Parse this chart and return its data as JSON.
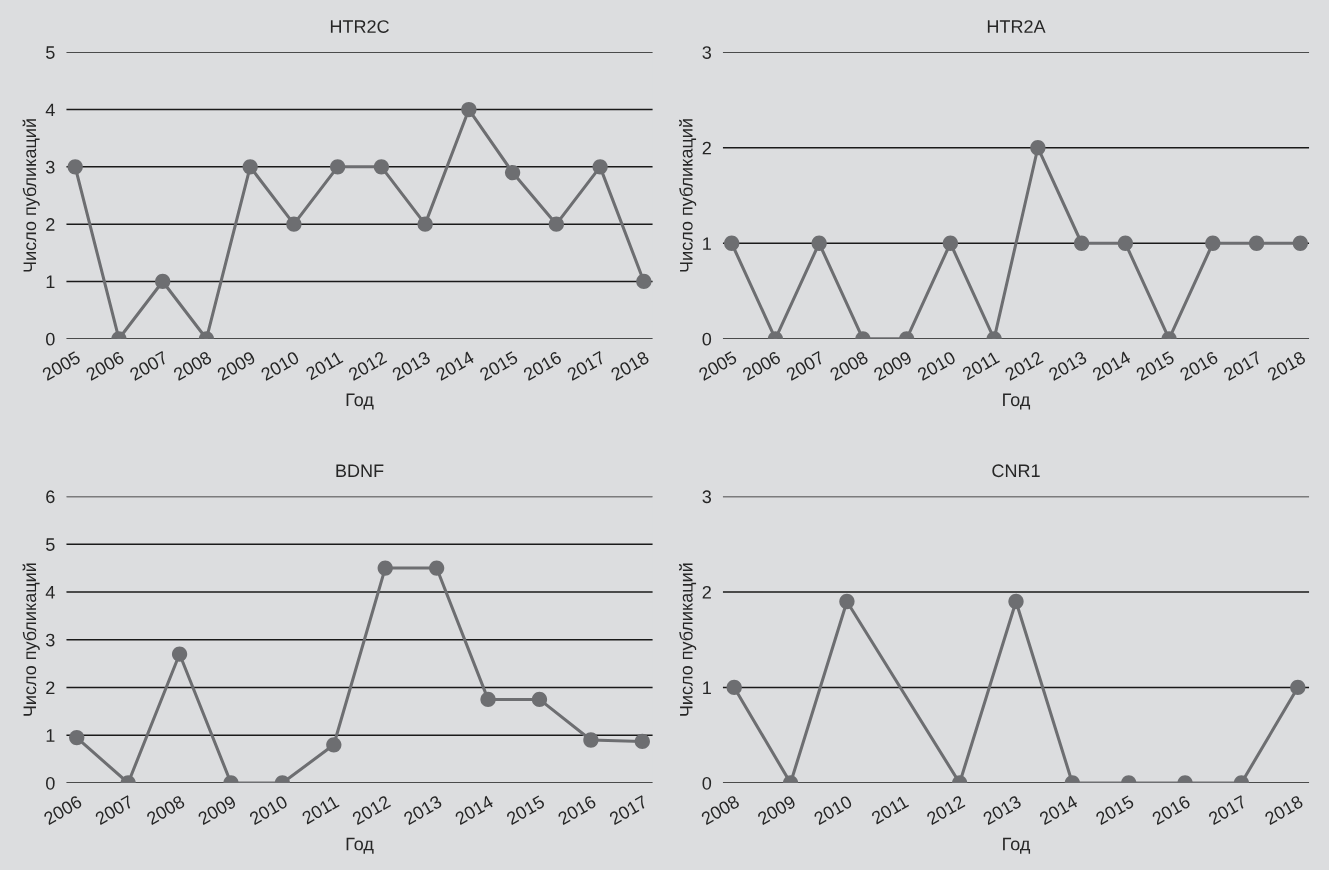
{
  "chart_data": [
    {
      "type": "line",
      "title": "HTR2C",
      "xlabel": "Год",
      "ylabel": "Число публикаций",
      "x": [
        2005,
        2006,
        2007,
        2008,
        2009,
        2010,
        2011,
        2012,
        2013,
        2014,
        2015,
        2016,
        2017,
        2018
      ],
      "xlim": [
        2004.8,
        2018.2
      ],
      "xticks": [
        2005,
        2006,
        2007,
        2008,
        2009,
        2010,
        2011,
        2012,
        2013,
        2014,
        2015,
        2016,
        2017,
        2018
      ],
      "ylim": [
        0,
        5
      ],
      "yticks": [
        0,
        1,
        2,
        3,
        4,
        5
      ],
      "grid": "y",
      "marker": "circle",
      "line_style": "solid",
      "series": [
        {
          "color": "#6d6e71",
          "values": [
            3,
            0,
            1,
            0,
            3,
            2,
            3,
            3,
            2,
            4,
            2.9,
            2,
            3,
            1
          ]
        }
      ]
    },
    {
      "type": "line",
      "title": "HTR2A",
      "xlabel": "Год",
      "ylabel": "Число публикаций",
      "x": [
        2005,
        2006,
        2007,
        2008,
        2009,
        2010,
        2011,
        2012,
        2013,
        2014,
        2015,
        2016,
        2017,
        2018
      ],
      "xlim": [
        2004.8,
        2018.2
      ],
      "xticks": [
        2005,
        2006,
        2007,
        2008,
        2009,
        2010,
        2011,
        2012,
        2013,
        2014,
        2015,
        2016,
        2017,
        2018
      ],
      "ylim": [
        0,
        3
      ],
      "yticks": [
        0,
        1,
        2,
        3
      ],
      "grid": "y",
      "marker": "circle",
      "line_style": "solid",
      "series": [
        {
          "color": "#6d6e71",
          "values": [
            1,
            0,
            1,
            0,
            0,
            1,
            0,
            2,
            1,
            1,
            0,
            1,
            1,
            1
          ]
        }
      ]
    },
    {
      "type": "line",
      "title": "BDNF",
      "xlabel": "Год",
      "ylabel": "Число публикаций",
      "x": [
        2006,
        2007,
        2008,
        2009,
        2010,
        2011,
        2012,
        2013,
        2014,
        2015,
        2016,
        2017
      ],
      "xlim": [
        2005.8,
        2017.2
      ],
      "xticks": [
        2006,
        2007,
        2008,
        2009,
        2010,
        2011,
        2012,
        2013,
        2014,
        2015,
        2016,
        2017
      ],
      "ylim": [
        0,
        6
      ],
      "yticks": [
        0,
        1,
        2,
        3,
        4,
        5,
        6
      ],
      "grid": "y",
      "marker": "circle",
      "line_style": "solid",
      "series": [
        {
          "color": "#6d6e71",
          "values": [
            0.95,
            0,
            2.7,
            0,
            0,
            0.8,
            4.5,
            4.5,
            1.75,
            1.75,
            0.9,
            0.87
          ]
        }
      ]
    },
    {
      "type": "line",
      "title": "CNR1",
      "xlabel": "Год",
      "ylabel": "Число публикаций",
      "x": [
        2008,
        2009,
        2010,
        2012,
        2013,
        2014,
        2015,
        2016,
        2017,
        2018
      ],
      "xlim": [
        2007.8,
        2018.2
      ],
      "xticks": [
        2008,
        2009,
        2010,
        2011,
        2012,
        2013,
        2014,
        2015,
        2016,
        2017,
        2018
      ],
      "ylim": [
        0,
        3
      ],
      "yticks": [
        0,
        1,
        2,
        3
      ],
      "grid": "y",
      "marker": "circle",
      "line_style": "solid",
      "series": [
        {
          "color": "#6d6e71",
          "values": [
            1,
            0,
            1.9,
            0,
            1.9,
            0,
            0,
            0,
            0,
            1
          ]
        }
      ]
    }
  ]
}
